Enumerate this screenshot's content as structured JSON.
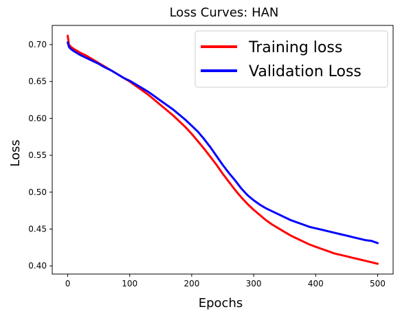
{
  "chart_data": {
    "type": "line",
    "title": "Loss Curves: HAN",
    "xlabel": "Epochs",
    "ylabel": "Loss",
    "xlim": [
      -25,
      525
    ],
    "ylim": [
      0.389,
      0.726
    ],
    "xticks": [
      0,
      100,
      200,
      300,
      400,
      500
    ],
    "yticks": [
      0.4,
      0.45,
      0.5,
      0.55,
      0.6,
      0.65,
      0.7
    ],
    "grid": false,
    "legend_position": "upper-right",
    "series": [
      {
        "name": "Training loss",
        "color": "#ff0000",
        "x": [
          0,
          2,
          5,
          10,
          20,
          30,
          40,
          50,
          60,
          70,
          80,
          90,
          100,
          110,
          120,
          130,
          140,
          150,
          160,
          170,
          180,
          190,
          200,
          210,
          220,
          230,
          240,
          250,
          260,
          270,
          280,
          290,
          300,
          310,
          320,
          330,
          340,
          350,
          360,
          370,
          380,
          390,
          400,
          410,
          420,
          430,
          440,
          450,
          460,
          470,
          480,
          490,
          500
        ],
        "y": [
          0.712,
          0.7,
          0.697,
          0.694,
          0.689,
          0.685,
          0.68,
          0.675,
          0.67,
          0.665,
          0.66,
          0.655,
          0.65,
          0.644,
          0.638,
          0.632,
          0.625,
          0.618,
          0.611,
          0.604,
          0.596,
          0.588,
          0.579,
          0.569,
          0.559,
          0.548,
          0.537,
          0.525,
          0.514,
          0.503,
          0.493,
          0.484,
          0.476,
          0.469,
          0.462,
          0.456,
          0.451,
          0.446,
          0.441,
          0.437,
          0.433,
          0.429,
          0.426,
          0.423,
          0.42,
          0.417,
          0.415,
          0.413,
          0.411,
          0.409,
          0.407,
          0.405,
          0.403
        ]
      },
      {
        "name": "Validation Loss",
        "color": "#0000ff",
        "x": [
          0,
          2,
          5,
          10,
          20,
          30,
          40,
          50,
          60,
          70,
          80,
          90,
          100,
          110,
          120,
          130,
          140,
          150,
          160,
          170,
          180,
          190,
          200,
          210,
          220,
          230,
          240,
          250,
          260,
          270,
          280,
          290,
          300,
          310,
          320,
          330,
          340,
          350,
          360,
          370,
          380,
          390,
          400,
          410,
          420,
          430,
          440,
          450,
          460,
          470,
          480,
          490,
          500
        ],
        "y": [
          0.703,
          0.697,
          0.694,
          0.691,
          0.686,
          0.682,
          0.678,
          0.674,
          0.669,
          0.665,
          0.66,
          0.655,
          0.651,
          0.646,
          0.641,
          0.636,
          0.63,
          0.624,
          0.618,
          0.612,
          0.605,
          0.598,
          0.59,
          0.582,
          0.572,
          0.561,
          0.549,
          0.537,
          0.526,
          0.516,
          0.505,
          0.496,
          0.489,
          0.483,
          0.478,
          0.474,
          0.47,
          0.466,
          0.462,
          0.459,
          0.456,
          0.453,
          0.451,
          0.449,
          0.447,
          0.445,
          0.443,
          0.441,
          0.439,
          0.437,
          0.435,
          0.434,
          0.431
        ]
      }
    ]
  }
}
